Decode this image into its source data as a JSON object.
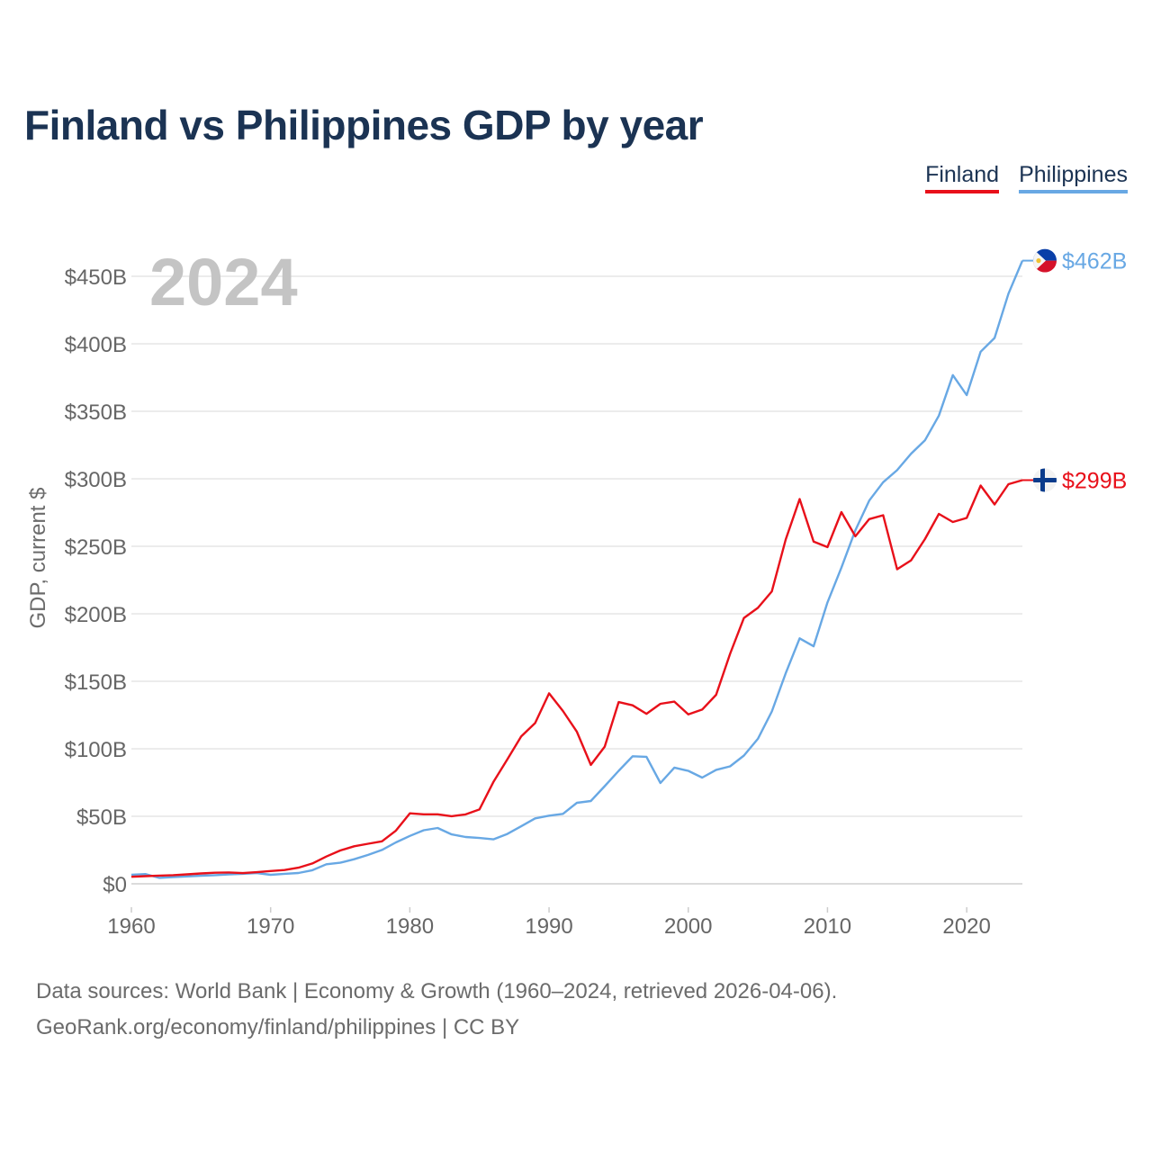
{
  "title": "Finland vs Philippines GDP by year",
  "legend": [
    {
      "label": "Finland",
      "color": "#e8101a"
    },
    {
      "label": "Philippines",
      "color": "#68a8e4"
    }
  ],
  "year_label": "2024",
  "footer": {
    "line1": "Data sources: World Bank | Economy & Growth (1960–2024, retrieved 2026-04-06).",
    "line2": "GeoRank.org/economy/finland/philippines | CC BY"
  },
  "chart_data": {
    "type": "line",
    "title": "Finland vs Philippines GDP by year",
    "xlabel": "",
    "ylabel": "GDP, current $",
    "xlim": [
      1960,
      2024
    ],
    "ylim": [
      -20,
      480
    ],
    "yticks": [
      0,
      50,
      100,
      150,
      200,
      250,
      300,
      350,
      400,
      450
    ],
    "ytick_labels": [
      "$0",
      "$50B",
      "$100B",
      "$150B",
      "$200B",
      "$250B",
      "$300B",
      "$350B",
      "$400B",
      "$450B"
    ],
    "xticks": [
      1960,
      1970,
      1980,
      1990,
      2000,
      2010,
      2020
    ],
    "xtick_labels": [
      "1960",
      "1970",
      "1980",
      "1990",
      "2000",
      "2010",
      "2020"
    ],
    "x_start": 1960,
    "series": [
      {
        "name": "Finland",
        "color": "#e8101a",
        "end_label": "$299B",
        "values": [
          5.2,
          5.7,
          6.1,
          6.4,
          7.0,
          7.7,
          8.2,
          8.4,
          7.9,
          8.6,
          9.5,
          10.2,
          11.9,
          15.1,
          20.2,
          24.7,
          27.8,
          29.7,
          31.5,
          39.4,
          52.2,
          51.5,
          51.5,
          50.1,
          51.4,
          55.1,
          75.4,
          92.2,
          109.2,
          119.1,
          141.1,
          128.0,
          112.6,
          88.1,
          101.6,
          134.6,
          132.2,
          125.9,
          133.3,
          134.9,
          125.5,
          129.1,
          140.0,
          170.3,
          196.9,
          204.4,
          216.6,
          255.0,
          285.0,
          253.5,
          249.4,
          275.3,
          257.4,
          270.1,
          273.0,
          233.0,
          239.6,
          255.3,
          274.0,
          268.0,
          271.0,
          295.0,
          281.0,
          296.0,
          299.0
        ]
      },
      {
        "name": "Philippines",
        "color": "#68a8e4",
        "end_label": "$462B",
        "values": [
          6.7,
          7.2,
          4.4,
          5.0,
          5.5,
          6.0,
          6.4,
          6.9,
          7.4,
          8.0,
          6.7,
          7.4,
          8.0,
          10.1,
          14.5,
          15.6,
          18.2,
          21.4,
          25.1,
          30.7,
          35.5,
          39.7,
          41.3,
          36.6,
          34.7,
          33.9,
          32.9,
          36.9,
          42.6,
          48.5,
          50.5,
          51.8,
          60.0,
          61.3,
          72.3,
          83.7,
          94.5,
          94.1,
          74.7,
          86.1,
          83.7,
          78.7,
          84.4,
          87.0,
          95.0,
          107.4,
          127.7,
          155.9,
          181.8,
          175.9,
          208.4,
          234.2,
          261.9,
          283.9,
          297.5,
          306.4,
          318.6,
          328.5,
          346.8,
          376.8,
          362.0,
          394.1,
          404.3,
          437.1,
          461.6
        ]
      }
    ]
  }
}
